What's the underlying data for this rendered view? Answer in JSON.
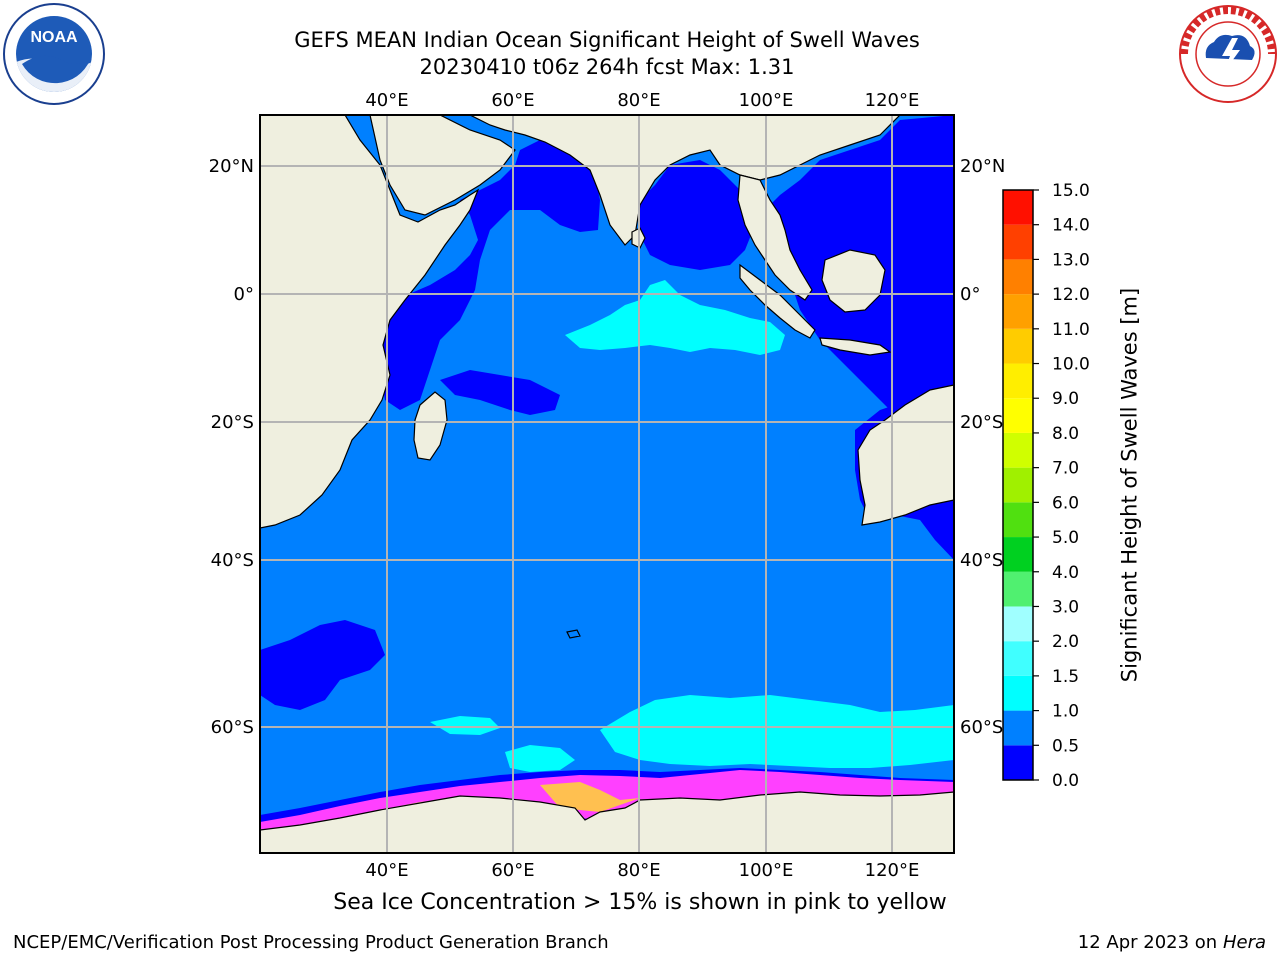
{
  "title": {
    "line1": "GEFS MEAN Indian Ocean Significant Height of Swell Waves",
    "line2": "20230410 t06z 264h fcst   Max: 1.31"
  },
  "axes": {
    "lon_ticks": [
      "40°E",
      "60°E",
      "80°E",
      "100°E",
      "120°E"
    ],
    "lat_ticks": [
      "20°N",
      "0°",
      "20°S",
      "40°S",
      "60°S"
    ]
  },
  "colorbar": {
    "label": "Significant Height of Swell Waves [m]",
    "ticks": [
      "0.0",
      "0.5",
      "1.0",
      "1.5",
      "2.0",
      "3.0",
      "4.0",
      "5.0",
      "6.0",
      "7.0",
      "8.0",
      "9.0",
      "10.0",
      "11.0",
      "12.0",
      "13.0",
      "14.0",
      "15.0"
    ],
    "colors": [
      "#0000ff",
      "#0080ff",
      "#00ffff",
      "#40ffff",
      "#a0ffff",
      "#50f070",
      "#00d020",
      "#50e010",
      "#a0f000",
      "#d0ff00",
      "#ffff00",
      "#ffee00",
      "#ffcc00",
      "#ffa000",
      "#ff8000",
      "#ff4000",
      "#ff1000"
    ]
  },
  "map": {
    "colors": {
      "land": "#efefdf",
      "ocean_low": "#0000ff",
      "ocean_mid": "#0080ff",
      "ocean_high": "#00ffff",
      "sea_ice_edge": "#ff40ff",
      "sea_ice_high": "#ffc050"
    },
    "max_value": 1.31
  },
  "caption": "Sea Ice Concentration > 15% is shown in pink to yellow",
  "footer": {
    "left": "NCEP/EMC/Verification Post Processing Product Generation Branch",
    "right_prefix": "12 Apr 2023 on ",
    "right_host": "Hera"
  },
  "logos": {
    "noaa": "NOAA",
    "noaa_ring": "NATIONAL OCEANIC AND ATMOSPHERIC ADMINISTRATION · U.S. DEPARTMENT OF COMMERCE",
    "nws_ring": "NATIONAL WEATHER SERVICE"
  }
}
